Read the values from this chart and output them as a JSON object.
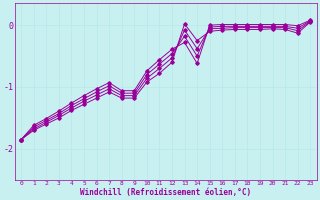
{
  "xlabel": "Windchill (Refroidissement éolien,°C)",
  "background_color": "#c8f0f0",
  "line_color": "#990099",
  "grid_color": "#b8e8e8",
  "xlim": [
    -0.5,
    23.5
  ],
  "ylim": [
    -2.5,
    0.35
  ],
  "yticks": [
    0,
    -1,
    -2
  ],
  "xticks": [
    0,
    1,
    2,
    3,
    4,
    5,
    6,
    7,
    8,
    9,
    10,
    11,
    12,
    13,
    14,
    15,
    16,
    17,
    18,
    19,
    20,
    21,
    22,
    23
  ],
  "series_x": [
    0,
    1,
    2,
    3,
    4,
    5,
    6,
    7,
    8,
    9,
    10,
    11,
    12,
    13,
    14,
    15,
    16,
    17,
    18,
    19,
    20,
    21,
    22,
    23
  ],
  "series": [
    [
      -1.85,
      -1.7,
      -1.6,
      -1.5,
      -1.38,
      -1.28,
      -1.18,
      -1.08,
      -1.18,
      -1.18,
      -0.92,
      -0.78,
      -0.6,
      0.02,
      -0.25,
      -0.1,
      -0.08,
      -0.07,
      -0.07,
      -0.07,
      -0.06,
      -0.07,
      -0.13,
      0.05
    ],
    [
      -1.85,
      -1.68,
      -1.57,
      -1.46,
      -1.34,
      -1.23,
      -1.13,
      -1.03,
      -1.14,
      -1.14,
      -0.86,
      -0.7,
      -0.53,
      -0.08,
      -0.38,
      -0.06,
      -0.05,
      -0.04,
      -0.04,
      -0.04,
      -0.04,
      -0.04,
      -0.09,
      0.06
    ],
    [
      -1.85,
      -1.65,
      -1.54,
      -1.43,
      -1.3,
      -1.19,
      -1.08,
      -0.98,
      -1.1,
      -1.1,
      -0.8,
      -0.63,
      -0.46,
      -0.18,
      -0.5,
      -0.03,
      -0.02,
      -0.02,
      -0.02,
      -0.02,
      -0.02,
      -0.02,
      -0.05,
      0.07
    ],
    [
      -1.85,
      -1.62,
      -1.51,
      -1.39,
      -1.26,
      -1.14,
      -1.03,
      -0.93,
      -1.06,
      -1.06,
      -0.74,
      -0.56,
      -0.39,
      -0.28,
      -0.62,
      0.0,
      0.01,
      0.01,
      0.01,
      0.01,
      0.01,
      0.01,
      -0.01,
      0.08
    ]
  ]
}
